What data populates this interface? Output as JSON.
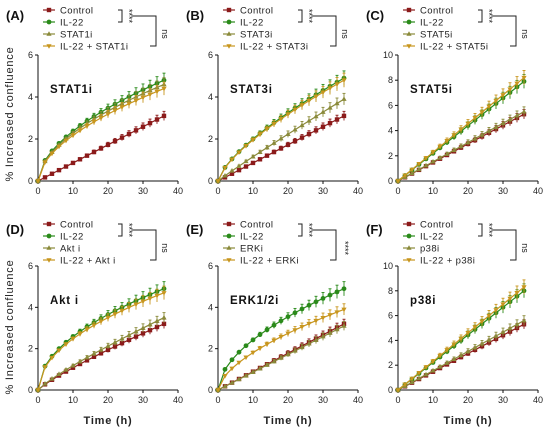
{
  "figure": {
    "ylabel": "% Increased confluence",
    "xlabel": "Time (h)"
  },
  "chart_data": [
    {
      "type": "line",
      "panel_label": "(A)",
      "inset_label": "STAT1i",
      "xlim": [
        0,
        40
      ],
      "ylim": [
        0,
        6
      ],
      "xticks": [
        0,
        10,
        20,
        30,
        40
      ],
      "yticks": [
        0,
        2,
        4,
        6
      ],
      "legend": [
        "Control",
        "IL-22",
        "STAT1i",
        "IL-22 + STAT1i"
      ],
      "sig": [
        {
          "text": "****",
          "pair": "Control vs IL-22"
        },
        {
          "text": "ns",
          "pair": "IL-22 vs IL-22 + STAT1i"
        }
      ],
      "series": [
        {
          "name": "Control",
          "color": "#8b1a1a",
          "marker": "square",
          "end": 3.1,
          "shape": 1.0
        },
        {
          "name": "IL-22",
          "color": "#2a8a1a",
          "marker": "circle",
          "end": 4.8,
          "shape": 0.55
        },
        {
          "name": "STAT1i",
          "color": "#8a8a3a",
          "marker": "triangle",
          "end": 4.6,
          "shape": 0.55
        },
        {
          "name": "IL-22 + STAT1i",
          "color": "#c8961e",
          "marker": "tri-down",
          "end": 4.4,
          "shape": 0.55
        }
      ]
    },
    {
      "type": "line",
      "panel_label": "(B)",
      "inset_label": "STAT3i",
      "xlim": [
        0,
        40
      ],
      "ylim": [
        0,
        6
      ],
      "xticks": [
        0,
        10,
        20,
        30,
        40
      ],
      "yticks": [
        0,
        2,
        4,
        6
      ],
      "legend": [
        "Control",
        "IL-22",
        "STAT3i",
        "IL-22 + STAT3i"
      ],
      "sig": [
        {
          "text": "****",
          "pair": "Control vs IL-22"
        },
        {
          "text": "ns",
          "pair": "IL-22 vs IL-22 + STAT3i"
        }
      ],
      "series": [
        {
          "name": "Control",
          "color": "#8b1a1a",
          "marker": "square",
          "end": 3.1,
          "shape": 1.0
        },
        {
          "name": "IL-22",
          "color": "#2a8a1a",
          "marker": "circle",
          "end": 4.9,
          "shape": 0.7
        },
        {
          "name": "STAT3i",
          "color": "#8a8a3a",
          "marker": "triangle",
          "end": 3.9,
          "shape": 0.95
        },
        {
          "name": "IL-22 + STAT3i",
          "color": "#c8961e",
          "marker": "tri-down",
          "end": 4.8,
          "shape": 0.7
        }
      ]
    },
    {
      "type": "line",
      "panel_label": "(C)",
      "inset_label": "STAT5i",
      "xlim": [
        0,
        40
      ],
      "ylim": [
        0,
        10
      ],
      "xticks": [
        0,
        10,
        20,
        30,
        40
      ],
      "yticks": [
        0,
        2,
        4,
        6,
        8,
        10
      ],
      "legend": [
        "Control",
        "IL-22",
        "STAT5i",
        "IL-22 + STAT5i"
      ],
      "sig": [
        {
          "text": "****",
          "pair": "Control vs IL-22"
        },
        {
          "text": "ns",
          "pair": "IL-22 vs IL-22 + STAT5i"
        }
      ],
      "series": [
        {
          "name": "Control",
          "color": "#8b1a1a",
          "marker": "square",
          "end": 5.3,
          "shape": 1.0
        },
        {
          "name": "IL-22",
          "color": "#2a8a1a",
          "marker": "circle",
          "end": 7.9,
          "shape": 1.0
        },
        {
          "name": "STAT5i",
          "color": "#8a8a3a",
          "marker": "triangle",
          "end": 5.5,
          "shape": 1.0
        },
        {
          "name": "IL-22 + STAT5i",
          "color": "#c8961e",
          "marker": "tri-down",
          "end": 8.2,
          "shape": 1.0
        }
      ]
    },
    {
      "type": "line",
      "panel_label": "(D)",
      "inset_label": "Akt i",
      "xlim": [
        0,
        40
      ],
      "ylim": [
        0,
        6
      ],
      "xticks": [
        0,
        10,
        20,
        30,
        40
      ],
      "yticks": [
        0,
        2,
        4,
        6
      ],
      "legend": [
        "Control",
        "IL-22",
        "Akt i",
        "IL-22 + Akt i"
      ],
      "sig": [
        {
          "text": "****",
          "pair": "Control vs IL-22"
        },
        {
          "text": "ns",
          "pair": "IL-22 vs IL-22 + Akt i"
        }
      ],
      "series": [
        {
          "name": "Control",
          "color": "#8b1a1a",
          "marker": "square",
          "end": 3.2,
          "shape": 0.85
        },
        {
          "name": "IL-22",
          "color": "#2a8a1a",
          "marker": "circle",
          "end": 4.9,
          "shape": 0.5
        },
        {
          "name": "Akt i",
          "color": "#8a8a3a",
          "marker": "triangle",
          "end": 3.5,
          "shape": 0.85
        },
        {
          "name": "IL-22 + Akt i",
          "color": "#c8961e",
          "marker": "tri-down",
          "end": 4.7,
          "shape": 0.5
        }
      ]
    },
    {
      "type": "line",
      "panel_label": "(E)",
      "inset_label": "ERK1/2i",
      "xlim": [
        0,
        40
      ],
      "ylim": [
        0,
        6
      ],
      "xticks": [
        0,
        10,
        20,
        30,
        40
      ],
      "yticks": [
        0,
        2,
        4,
        6
      ],
      "legend": [
        "Control",
        "IL-22",
        "ERKi",
        "IL-22 + ERKi"
      ],
      "sig": [
        {
          "text": "****",
          "pair": "Control vs IL-22"
        },
        {
          "text": "****",
          "pair": "IL-22 vs IL-22 + ERKi"
        }
      ],
      "series": [
        {
          "name": "Control",
          "color": "#8b1a1a",
          "marker": "square",
          "end": 3.2,
          "shape": 1.0
        },
        {
          "name": "IL-22",
          "color": "#2a8a1a",
          "marker": "circle",
          "end": 4.9,
          "shape": 0.55
        },
        {
          "name": "ERKi",
          "color": "#8a8a3a",
          "marker": "triangle",
          "end": 3.1,
          "shape": 1.0
        },
        {
          "name": "IL-22 + ERKi",
          "color": "#c8961e",
          "marker": "tri-down",
          "end": 3.9,
          "shape": 0.6
        }
      ]
    },
    {
      "type": "line",
      "panel_label": "(F)",
      "inset_label": "p38i",
      "xlim": [
        0,
        40
      ],
      "ylim": [
        0,
        10
      ],
      "xticks": [
        0,
        10,
        20,
        30,
        40
      ],
      "yticks": [
        0,
        2,
        4,
        6,
        8,
        10
      ],
      "legend": [
        "Control",
        "IL-22",
        "p38i",
        "IL-22 + p38i"
      ],
      "sig": [
        {
          "text": "****",
          "pair": "Control vs IL-22"
        },
        {
          "text": "ns",
          "pair": "IL-22 vs IL-22 + p38i"
        }
      ],
      "series": [
        {
          "name": "Control",
          "color": "#8b1a1a",
          "marker": "square",
          "end": 5.3,
          "shape": 1.0
        },
        {
          "name": "IL-22",
          "color": "#2a8a1a",
          "marker": "circle",
          "end": 8.0,
          "shape": 1.0
        },
        {
          "name": "p38i",
          "color": "#8a8a3a",
          "marker": "triangle",
          "end": 5.6,
          "shape": 1.0
        },
        {
          "name": "IL-22 + p38i",
          "color": "#c8961e",
          "marker": "tri-down",
          "end": 8.3,
          "shape": 1.0
        }
      ]
    }
  ]
}
